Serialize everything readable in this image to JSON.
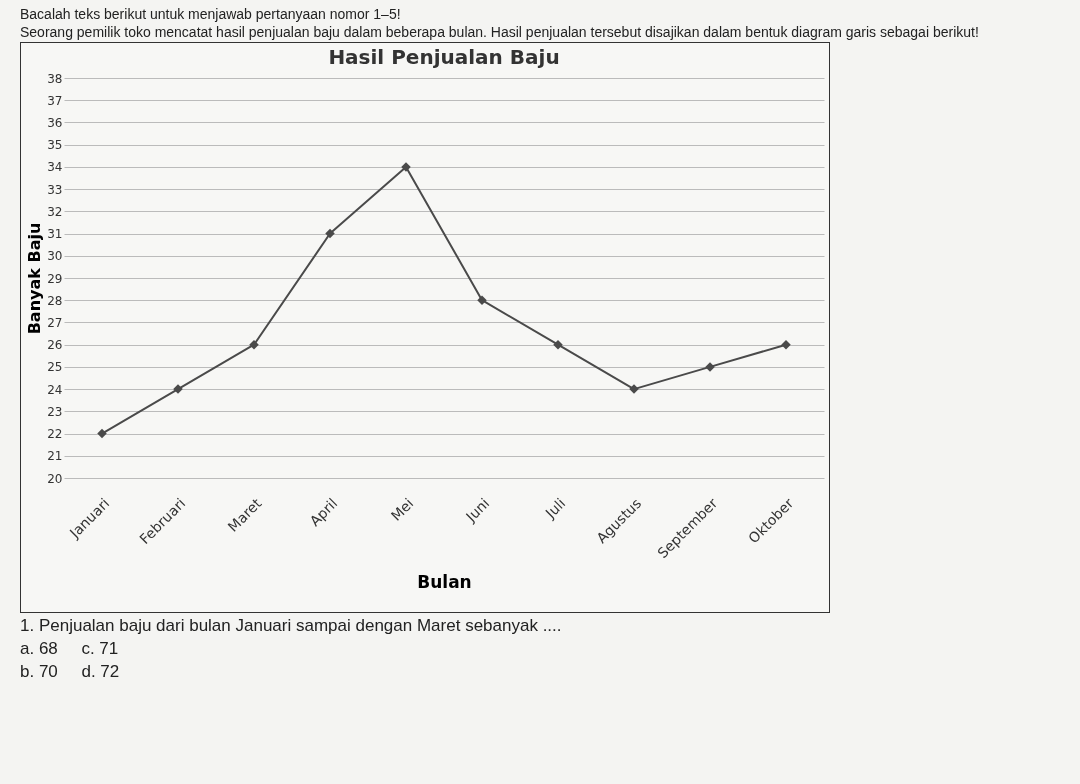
{
  "chart_data": {
    "type": "line",
    "title": "Hasil Penjualan Baju",
    "xlabel": "Bulan",
    "ylabel": "Banyak Baju",
    "categories": [
      "Januari",
      "Februari",
      "Maret",
      "April",
      "Mei",
      "Juni",
      "Juli",
      "Agustus",
      "September",
      "Oktober"
    ],
    "series": [
      {
        "color": "#4a4a4a",
        "values": [
          22,
          24,
          26,
          31,
          34,
          28,
          26,
          24,
          25,
          26
        ]
      }
    ],
    "ylim": [
      20,
      38
    ],
    "yticks": [
      20,
      21,
      22,
      23,
      24,
      25,
      26,
      27,
      28,
      29,
      30,
      31,
      32,
      33,
      34,
      35,
      36,
      37,
      38
    ],
    "grid": "y",
    "marker": "diamond",
    "line_style": "solid",
    "legend": false,
    "annotations": [
      "Bacalah teks berikut untuk menjawab pertanyaan nomor 1–5!",
      "Seorang pemilik toko mencatat hasil penjualan baju dalam beberapa bulan. Hasil penjualan tersebut disajikan dalam bentuk diagram garis sebagai berikut!",
      "1. Penjualan baju dari bulan Januari sampai dengan Maret sebanyak ....",
      "a. 68     c. 71",
      "b. 70     d. 72"
    ]
  }
}
